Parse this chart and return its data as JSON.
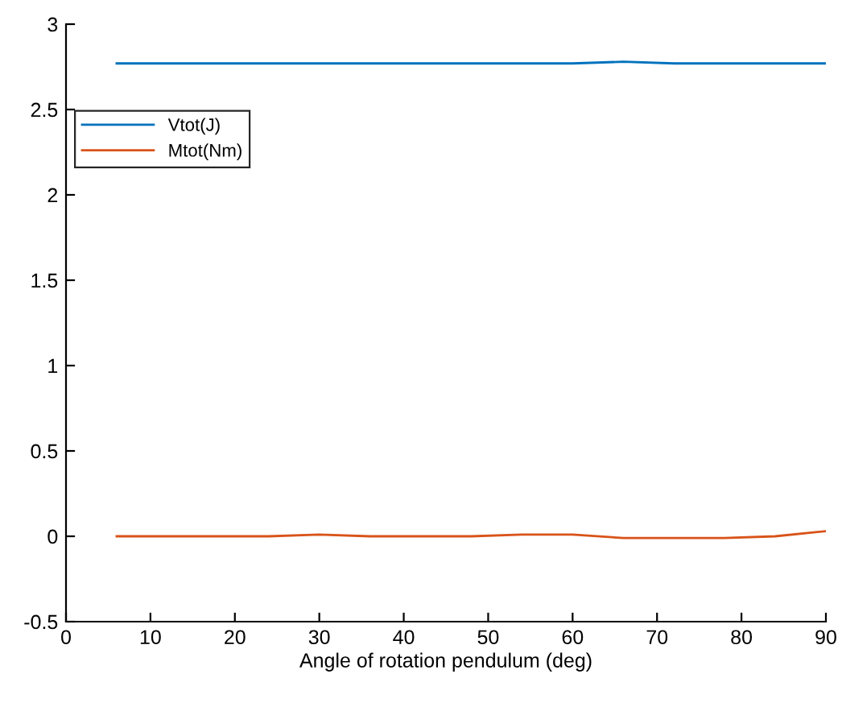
{
  "chart_data": {
    "type": "line",
    "xlabel": "Angle of rotation pendulum (deg)",
    "x": [
      6,
      12,
      18,
      24,
      30,
      36,
      42,
      48,
      54,
      60,
      66,
      72,
      78,
      84,
      90
    ],
    "series": [
      {
        "name": "Vtot(J)",
        "color": "#0072bd",
        "values": [
          2.77,
          2.77,
          2.77,
          2.77,
          2.77,
          2.77,
          2.77,
          2.77,
          2.77,
          2.77,
          2.78,
          2.77,
          2.77,
          2.77,
          2.77
        ]
      },
      {
        "name": "Mtot(Nm)",
        "color": "#d95319",
        "values": [
          0.0,
          0.0,
          0.0,
          0.0,
          0.01,
          0.0,
          0.0,
          0.0,
          0.01,
          0.01,
          -0.01,
          -0.01,
          -0.01,
          0.0,
          0.03
        ]
      }
    ],
    "xlim": [
      0,
      90
    ],
    "xticks": [
      0,
      10,
      20,
      30,
      40,
      50,
      60,
      70,
      80,
      90
    ],
    "ylim": [
      -0.5,
      3
    ],
    "yticks": [
      -0.5,
      0,
      0.5,
      1,
      1.5,
      2,
      2.5,
      3
    ],
    "legend": "top left",
    "grid": false
  }
}
